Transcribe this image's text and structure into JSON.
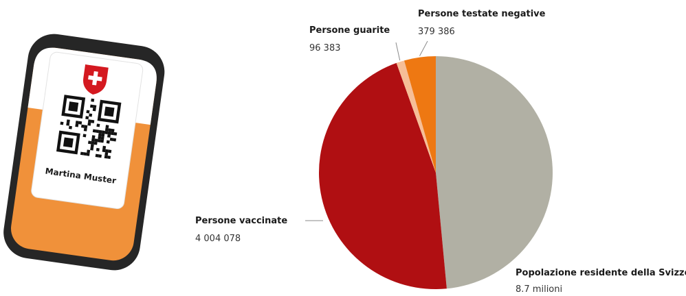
{
  "card": {
    "name": "Martina Muster"
  },
  "colors": {
    "phone_body": "#262626",
    "phone_accent": "#f0913a",
    "card_bg": "#ffffff",
    "swiss_red": "#d41920"
  },
  "chart_data": {
    "type": "pie",
    "title": "",
    "start_angle_deg": 0,
    "direction": "clockwise",
    "slices": [
      {
        "label": "Popolazione residente della Svizzera:",
        "value_label": "8.7 milioni",
        "value": 4220153,
        "color": "#b1b0a4"
      },
      {
        "label": "Persone vaccinate",
        "value_label": "4 004 078",
        "value": 4004078,
        "color": "#b00f12"
      },
      {
        "label": "Persone guarite",
        "value_label": "96 383",
        "value": 96383,
        "color": "#f6be97"
      },
      {
        "label": "Persone testate negative",
        "value_label": "379 386",
        "value": 379386,
        "color": "#ee7812"
      }
    ]
  }
}
